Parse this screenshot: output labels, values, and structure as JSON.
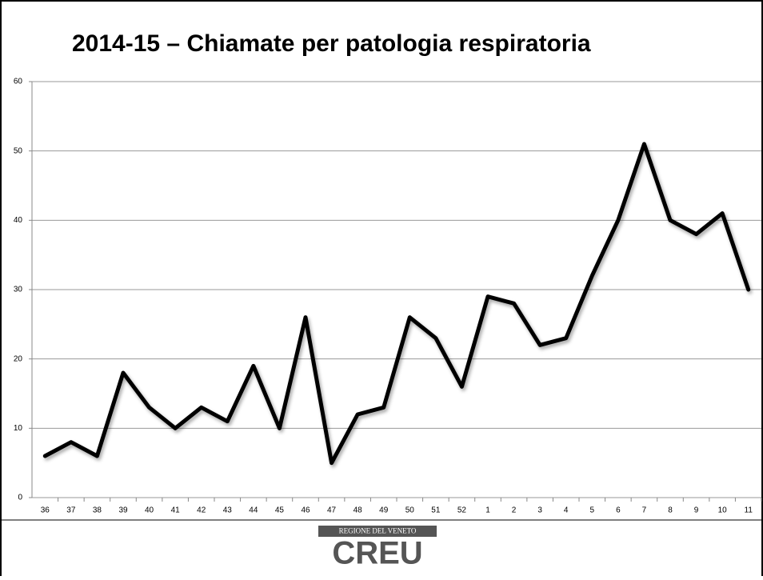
{
  "chart_data": {
    "type": "line",
    "title": "2014-15 – Chiamate per patologia respiratoria",
    "categories": [
      "36",
      "37",
      "38",
      "39",
      "40",
      "41",
      "42",
      "43",
      "44",
      "45",
      "46",
      "47",
      "48",
      "49",
      "50",
      "51",
      "52",
      "1",
      "2",
      "3",
      "4",
      "5",
      "6",
      "7",
      "8",
      "9",
      "10",
      "11"
    ],
    "series": [
      {
        "name": "Chiamate",
        "color": "#000000",
        "values": [
          6,
          8,
          6,
          18,
          13,
          10,
          13,
          11,
          19,
          10,
          26,
          5,
          12,
          13,
          26,
          23,
          16,
          29,
          28,
          22,
          23,
          32,
          40,
          51,
          40,
          38,
          41,
          30
        ]
      }
    ],
    "ylim": [
      0,
      60
    ],
    "yticks": [
      0,
      10,
      20,
      30,
      40,
      50,
      60
    ],
    "grid": true
  },
  "logo": {
    "region": "REGIONE DEL VENETO",
    "name": "CREU"
  }
}
